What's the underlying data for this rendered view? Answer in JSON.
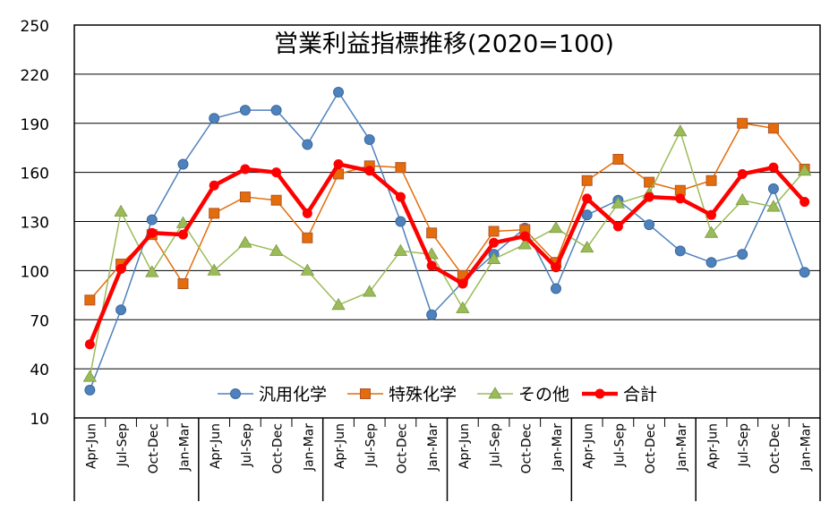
{
  "chart_data": {
    "type": "line",
    "title": "営業利益指標推移(2020=100)",
    "xlabel": "",
    "ylabel": "",
    "ylim": [
      10,
      250
    ],
    "yticks": [
      10,
      40,
      70,
      100,
      130,
      160,
      190,
      220,
      250
    ],
    "grid": true,
    "legend_position": "bottom-center inside plot",
    "categories": [
      "Apr-Jun",
      "Jul-Sep",
      "Oct-Dec",
      "Jan-Mar",
      "Apr-Jun",
      "Jul-Sep",
      "Oct-Dec",
      "Jan-Mar",
      "Apr-Jun",
      "Jul-Sep",
      "Oct-Dec",
      "Jan-Mar",
      "Apr-Jun",
      "Jul-Sep",
      "Oct-Dec",
      "Jan-Mar",
      "Apr-Jun",
      "Jul-Sep",
      "Oct-Dec",
      "Jan-Mar",
      "Apr-Jun",
      "Jul-Sep",
      "Oct-Dec",
      "Jan-Mar"
    ],
    "series": [
      {
        "name": "汎用化学",
        "color": "#4f81bd",
        "marker": "circle",
        "values": [
          27,
          76,
          131,
          165,
          193,
          198,
          198,
          177,
          209,
          180,
          130,
          73,
          93,
          110,
          126,
          89,
          134,
          143,
          128,
          112,
          105,
          110,
          150,
          99
        ]
      },
      {
        "name": "特殊化学",
        "color": "#e46c0a",
        "marker": "square",
        "values": [
          82,
          104,
          122,
          92,
          135,
          145,
          143,
          120,
          159,
          164,
          163,
          123,
          97,
          124,
          125,
          105,
          155,
          168,
          154,
          149,
          155,
          190,
          187,
          162
        ]
      },
      {
        "name": "その他",
        "color": "#9bbb59",
        "marker": "triangle",
        "values": [
          35,
          136,
          99,
          129,
          100,
          117,
          112,
          100,
          79,
          87,
          112,
          110,
          77,
          107,
          116,
          126,
          114,
          141,
          147,
          185,
          123,
          143,
          139,
          161
        ]
      },
      {
        "name": "合計",
        "color": "#ff0000",
        "marker": "dot",
        "values": [
          55,
          101,
          123,
          122,
          152,
          162,
          160,
          135,
          165,
          161,
          145,
          103,
          92,
          117,
          121,
          102,
          144,
          127,
          145,
          144,
          134,
          159,
          163,
          142
        ]
      }
    ]
  }
}
